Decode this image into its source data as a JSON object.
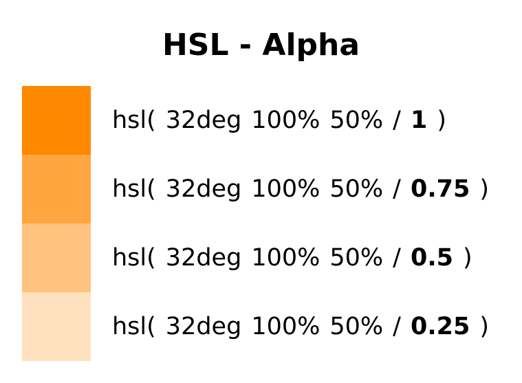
{
  "title": "HSL - Alpha",
  "rows": [
    {
      "prefix": "hsl(",
      "hue": "32deg",
      "saturation": "100%",
      "lightness": "50%",
      "slash": "/",
      "alpha": "1",
      "close": ")",
      "color": "hsla(32, 100%, 50%, 1)"
    },
    {
      "prefix": "hsl(",
      "hue": "32deg",
      "saturation": "100%",
      "lightness": "50%",
      "slash": "/",
      "alpha": "0.75",
      "close": ")",
      "color": "hsla(32, 100%, 50%, 0.75)"
    },
    {
      "prefix": "hsl(",
      "hue": "32deg",
      "saturation": "100%",
      "lightness": "50%",
      "slash": "/",
      "alpha": "0.5",
      "close": ")",
      "color": "hsla(32, 100%, 50%, 0.5)"
    },
    {
      "prefix": "hsl(",
      "hue": "32deg",
      "saturation": "100%",
      "lightness": "50%",
      "slash": "/",
      "alpha": "0.25",
      "close": ")",
      "color": "hsla(32, 100%, 50%, 0.25)"
    }
  ]
}
